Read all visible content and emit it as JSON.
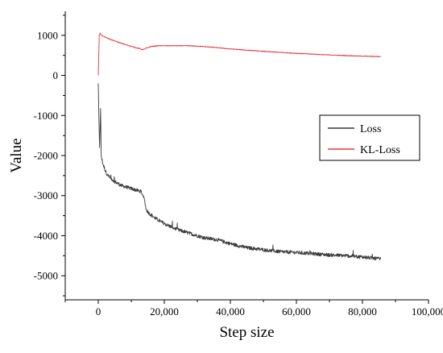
{
  "chart_data": {
    "type": "line",
    "title": "",
    "xlabel": "Step size",
    "ylabel": "Value",
    "xlim": [
      -10000,
      100000
    ],
    "ylim": [
      -5600,
      1600
    ],
    "x_ticks": [
      0,
      20000,
      40000,
      60000,
      80000,
      100000
    ],
    "x_tick_labels": [
      "0",
      "20,000",
      "40,000",
      "60,000",
      "80,000",
      "100,000"
    ],
    "y_ticks": [
      -5000,
      -4000,
      -3000,
      -2000,
      -1000,
      0,
      1000
    ],
    "y_tick_labels": [
      "-5000",
      "-4000",
      "-3000",
      "-2000",
      "-1000",
      "0",
      "1000"
    ],
    "grid": false,
    "legend_position": "right",
    "series": [
      {
        "name": "Loss",
        "color": "#3a3a3a",
        "noise": "high",
        "x": [
          0,
          200,
          400,
          700,
          900,
          1100,
          1400,
          1800,
          2500,
          3500,
          5000,
          7000,
          9000,
          11000,
          13000,
          14000,
          14500,
          15500,
          17000,
          20000,
          24000,
          28000,
          32000,
          36000,
          40000,
          45000,
          50000,
          55000,
          60000,
          65000,
          70000,
          75000,
          80000,
          83000,
          85500
        ],
        "y": [
          -200,
          -1100,
          -1800,
          -850,
          -2000,
          -2100,
          -2200,
          -2300,
          -2450,
          -2550,
          -2650,
          -2750,
          -2800,
          -2850,
          -2900,
          -3100,
          -3350,
          -3450,
          -3550,
          -3700,
          -3850,
          -3950,
          -4050,
          -4100,
          -4200,
          -4300,
          -4350,
          -4400,
          -4420,
          -4450,
          -4480,
          -4500,
          -4530,
          -4560,
          -4580
        ]
      },
      {
        "name": "KL-Loss",
        "color": "#e8333b",
        "noise": "low",
        "x": [
          0,
          150,
          300,
          600,
          1000,
          1500,
          3000,
          5000,
          7000,
          9000,
          11000,
          12500,
          13500,
          14500,
          16000,
          18000,
          20000,
          23000,
          27000,
          30000,
          35000,
          40000,
          50000,
          60000,
          70000,
          80000,
          85500
        ],
        "y": [
          0,
          500,
          1000,
          1050,
          1000,
          980,
          920,
          860,
          800,
          750,
          700,
          670,
          640,
          680,
          720,
          740,
          740,
          740,
          740,
          730,
          700,
          660,
          600,
          550,
          510,
          480,
          470
        ]
      }
    ]
  }
}
